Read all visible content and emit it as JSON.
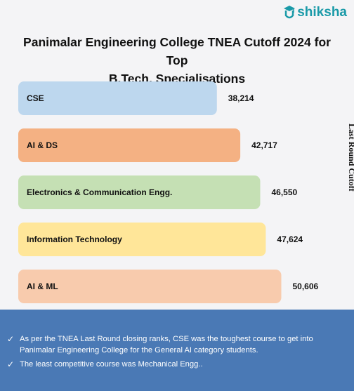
{
  "logo": {
    "text": "shiksha",
    "icon": "graduation-cap-icon"
  },
  "chart_data": {
    "type": "bar",
    "orientation": "horizontal",
    "title": "Panimalar Engineering College TNEA Cutoff 2024 for Top B.Tech. Specialisations",
    "title_lines": [
      "Panimalar Engineering College TNEA Cutoff 2024 for Top",
      "B.Tech. Specialisations"
    ],
    "ylabel": "Last Round Cutoff",
    "categories": [
      "CSE",
      "AI & DS",
      "Electronics & Communication Engg.",
      "Information Technology",
      "AI & ML"
    ],
    "values": [
      38214,
      42717,
      46550,
      47624,
      50606
    ],
    "value_labels": [
      "38,214",
      "42,717",
      "46,550",
      "47,624",
      "50,606"
    ],
    "colors": [
      "#bdd7ee",
      "#f4b183",
      "#c5e0b4",
      "#ffe699",
      "#f8cbad"
    ],
    "grid": false,
    "legend": "none"
  },
  "footer": {
    "notes": [
      "As per the TNEA Last Round closing ranks, CSE was the toughest course to get into Panimalar Engineering College for the General AI category students.",
      "The least competitive course was Mechanical Engg.."
    ],
    "bullet_icon": "check-icon",
    "background": "#4a79b5"
  }
}
